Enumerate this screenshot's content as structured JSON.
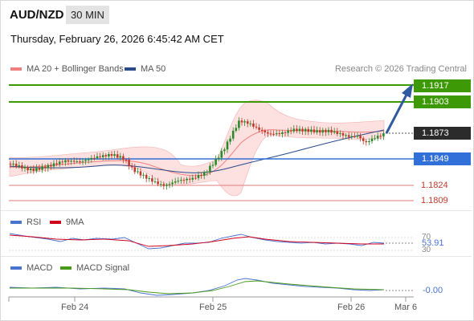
{
  "header": {
    "symbol": "AUD/NZD",
    "timeframe": "30 MIN",
    "datetime": "Thursday, February 26, 2026 6:45:42 AM CET"
  },
  "legend": {
    "ma20_label": "MA 20 + Bollinger Bands",
    "ma50_label": "MA 50",
    "ma20_color": "#f08080",
    "ma50_color": "#2a4a8a",
    "credit": "Research © 2026 Trading Central"
  },
  "levels": {
    "r2": "1.1917",
    "r1": "1.1903",
    "last": "1.1873",
    "s1": "1.1849",
    "s2": "1.1824",
    "s3": "1.1809"
  },
  "rsi": {
    "label": "RSI",
    "ma_label": "9MA",
    "value": "53.91",
    "upper": "70",
    "lower": "30",
    "rsi_color": "#4a72d0",
    "ma_color": "#d0021b"
  },
  "macd": {
    "label": "MACD",
    "signal_label": "MACD Signal",
    "value": "-0.00",
    "macd_color": "#4a72d0",
    "signal_color": "#4a9a1a"
  },
  "xaxis": {
    "labels": [
      "Feb 24",
      "Feb 25",
      "Feb 26",
      "Mar 6"
    ]
  },
  "colors": {
    "resistance": "#3d9a06",
    "support": "#3070d8",
    "minor_support": "#c0392b",
    "candle_up": "#2a8a2a",
    "candle_down": "#c0392b",
    "band_fill": "#fde0e0",
    "arrow": "#2f5aa0"
  }
}
